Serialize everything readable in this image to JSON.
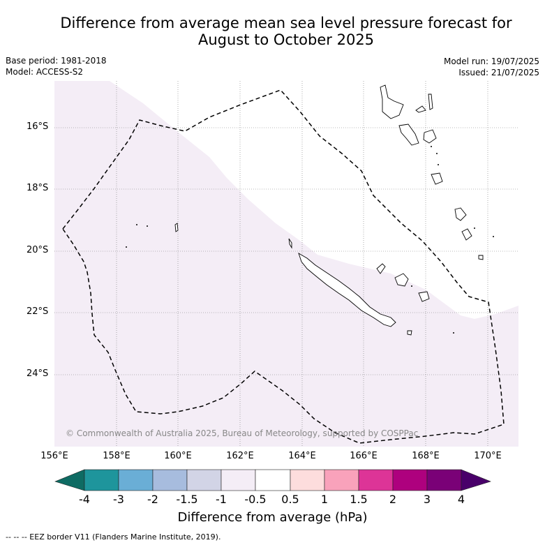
{
  "title_line1": "Difference from average mean sea level pressure forecast for",
  "title_line2": "August to October 2025",
  "meta": {
    "base_period": "Base period: 1981-2018",
    "model": "Model: ACCESS-S2",
    "model_run": "Model run: 19/07/2025",
    "issued": "Issued: 21/07/2025"
  },
  "map": {
    "latitude_labels": [
      "16°S",
      "18°S",
      "20°S",
      "22°S",
      "24°S"
    ],
    "longitude_labels": [
      "156°E",
      "158°E",
      "160°E",
      "162°E",
      "164°E",
      "166°E",
      "168°E",
      "170°E"
    ],
    "copyright": "© Commonwealth of Australia 2025, Bureau of Meteorology, supported by COSPPac",
    "shaded_category": "-1 to -0.5",
    "shaded_color": "#f4edf6",
    "eez_line_style": "dashed black",
    "landmasses": [
      "New Caledonia",
      "Loyalty Islands",
      "Vanuatu",
      "Chesterfield Islands"
    ]
  },
  "colorbar": {
    "ticks": [
      "-4",
      "-3",
      "-2",
      "-1.5",
      "-1",
      "-0.5",
      "0.5",
      "1",
      "1.5",
      "2",
      "3",
      "4"
    ],
    "colors": [
      "#0e6b63",
      "#1e959c",
      "#6aaed6",
      "#a7bcde",
      "#d2d4e6",
      "#f4edf6",
      "#ffffff",
      "#fddddd",
      "#f9a2bb",
      "#dd3497",
      "#ae017e",
      "#7a0177",
      "#49006a"
    ],
    "label": "Difference from average (hPa)"
  },
  "footnote": "--  --  -- EEZ border V11 (Flanders Marine Institute, 2019)."
}
